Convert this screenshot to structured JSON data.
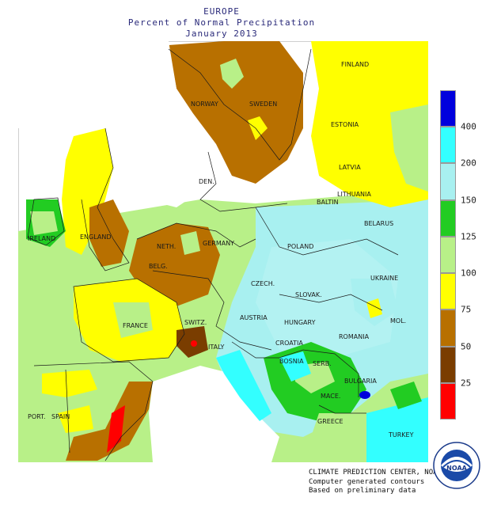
{
  "title": {
    "region": "EUROPE",
    "subtitle": "Percent of Normal Precipitation",
    "period": "January 2013"
  },
  "legend": [
    {
      "label": "400",
      "color": "#0000dd"
    },
    {
      "label": "200",
      "color": "#33ffff"
    },
    {
      "label": "150",
      "color": "#a8f0f0"
    },
    {
      "label": "125",
      "color": "#22cc22"
    },
    {
      "label": "100",
      "color": "#b8f088"
    },
    {
      "label": "75",
      "color": "#ffff00"
    },
    {
      "label": "50",
      "color": "#b87000"
    },
    {
      "label": "25",
      "color": "#7a3d00"
    },
    {
      "label": "",
      "color": "#ff0000"
    }
  ],
  "countries": [
    "FINLAND",
    "NORWAY",
    "SWEDEN",
    "ESTONIA",
    "DEN.",
    "LATVIA",
    "LITHUANIA",
    "BALTIN",
    "IRELAND",
    "ENGLAND",
    "BELARUS",
    "POLAND",
    "GERMANY",
    "NETH.",
    "BELG.",
    "CZECH.",
    "SLOVAK.",
    "UKRAINE",
    "FRANCE",
    "AUSTRIA",
    "HUNGARY",
    "MOL.",
    "SWITZ.",
    "ITALY",
    "CROATIA",
    "ROMANIA",
    "BOSNIA",
    "SERB.",
    "BULGARIA",
    "MACE.",
    "PORT.",
    "SPAIN",
    "GREECE",
    "TURKEY"
  ],
  "credits": {
    "line1": "CLIMATE PREDICTION CENTER, NOAA",
    "line2": "Computer generated contours",
    "line3": "Based on preliminary data"
  },
  "logo": {
    "text": "NOAA",
    "ring": "NATIONAL OCEANIC AND ATMOSPHERIC ADMINISTRATION · U.S. DEPARTMENT OF COMMERCE"
  }
}
